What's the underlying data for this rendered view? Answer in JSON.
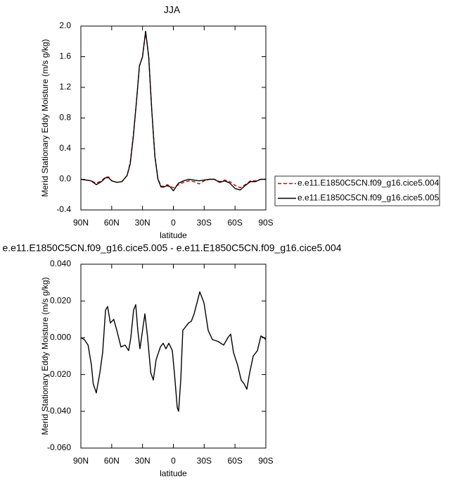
{
  "chart_data": [
    {
      "type": "line",
      "title": "JJA",
      "xlabel": "latitude",
      "ylabel": "Merid Stationary Eddy Moisture (m/s g/kg)",
      "x": [
        90,
        85,
        80,
        75,
        70,
        66,
        63,
        60,
        55,
        50,
        45,
        42,
        39,
        36,
        33,
        30,
        27,
        24,
        21,
        18,
        15,
        12,
        9,
        6,
        3,
        0,
        -5,
        -10,
        -15,
        -20,
        -25,
        -30,
        -35,
        -40,
        -45,
        -50,
        -55,
        -60,
        -65,
        -70,
        -75,
        -80,
        -85,
        -90
      ],
      "series": [
        {
          "name": "e.e11.E1850C5CN.f09_g16.cice5.004",
          "color": "#cc0000",
          "line_style": "dashed",
          "values": [
            0.0,
            -0.01,
            -0.02,
            -0.05,
            -0.02,
            0.03,
            0.03,
            -0.02,
            -0.04,
            -0.03,
            0.05,
            0.22,
            0.57,
            1.0,
            1.48,
            1.6,
            1.93,
            1.6,
            0.9,
            0.31,
            0.01,
            -0.09,
            -0.09,
            -0.07,
            -0.09,
            -0.11,
            -0.07,
            -0.04,
            -0.02,
            -0.03,
            -0.06,
            -0.02,
            0.0,
            0.0,
            -0.03,
            -0.01,
            -0.03,
            -0.08,
            -0.11,
            -0.07,
            -0.02,
            -0.02,
            0.0,
            0.0
          ]
        },
        {
          "name": "e.e11.E1850C5CN.f09_g16.cice5.005",
          "color": "#000000",
          "line_style": "solid",
          "values": [
            0.0,
            -0.01,
            -0.02,
            -0.07,
            -0.03,
            0.02,
            0.02,
            -0.02,
            -0.04,
            -0.03,
            0.05,
            0.2,
            0.55,
            1.0,
            1.48,
            1.6,
            1.93,
            1.6,
            0.9,
            0.3,
            0.0,
            -0.1,
            -0.1,
            -0.08,
            -0.1,
            -0.15,
            -0.05,
            -0.02,
            0.0,
            -0.01,
            -0.02,
            -0.01,
            0.0,
            0.0,
            -0.04,
            -0.02,
            -0.05,
            -0.12,
            -0.14,
            -0.08,
            -0.03,
            -0.03,
            0.0,
            0.0
          ]
        }
      ],
      "xlim": [
        90,
        -90
      ],
      "xticks": [
        {
          "value": 90,
          "label": "90N"
        },
        {
          "value": 60,
          "label": "60N"
        },
        {
          "value": 30,
          "label": "30N"
        },
        0,
        {
          "value": -30,
          "label": "30S"
        },
        {
          "value": -60,
          "label": "60S"
        },
        {
          "value": -90,
          "label": "90S"
        }
      ],
      "ylim": [
        -0.4,
        2.0
      ],
      "yticks": [
        {
          "value": 2.0,
          "label": "2.0"
        },
        {
          "value": 1.6,
          "label": "1.6"
        },
        {
          "value": 1.2,
          "label": "1.2"
        },
        {
          "value": 0.8,
          "label": "0.8"
        },
        {
          "value": 0.4,
          "label": "0.4"
        },
        {
          "value": 0.0,
          "label": "0.0"
        },
        {
          "value": -0.4,
          "label": "-0.4"
        }
      ],
      "legend": "right"
    },
    {
      "type": "line",
      "title": "e.e11.E1850C5CN.f09_g16.cice5.005 - e.e11.E1850C5CN.f09_g16.cice5.004",
      "xlabel": "latitude",
      "ylabel": "Merid Stationary Eddy Moisture (m/s g/kg)",
      "x": [
        90,
        86.6,
        83,
        79.7,
        78,
        75,
        71.5,
        68.8,
        66,
        64,
        61.3,
        58,
        55,
        51,
        47,
        43.5,
        41.4,
        38.7,
        36.6,
        34.6,
        32.5,
        30.5,
        27.7,
        25,
        22,
        19.5,
        16.8,
        12.6,
        9.9,
        7.2,
        4.4,
        1,
        -1,
        -3.8,
        -5.1,
        -7.2,
        -9.2,
        -12,
        -14.7,
        -17.5,
        -20.2,
        -23,
        -25.7,
        -29.8,
        -33.9,
        -38,
        -43.5,
        -49,
        -53,
        -55.8,
        -58.5,
        -62.6,
        -66,
        -68.8,
        -71.5,
        -74.3,
        -77.7,
        -81.8,
        -85.2,
        -88,
        -90
      ],
      "values": [
        0.0,
        -0.001,
        -0.004,
        -0.015,
        -0.025,
        -0.03,
        -0.019,
        -0.008,
        0.015,
        0.017,
        0.008,
        0.01,
        0.004,
        -0.005,
        -0.004,
        -0.007,
        0.0,
        0.015,
        0.018,
        0.004,
        -0.006,
        0.002,
        0.013,
        0.0,
        -0.019,
        -0.023,
        -0.012,
        -0.005,
        -0.003,
        -0.006,
        -0.003,
        -0.007,
        -0.019,
        -0.038,
        -0.04,
        -0.023,
        0.004,
        0.006,
        0.008,
        0.009,
        0.013,
        0.019,
        0.025,
        0.019,
        0.004,
        -0.001,
        -0.002,
        -0.004,
        0.0,
        0.002,
        -0.008,
        -0.015,
        -0.023,
        -0.025,
        -0.028,
        -0.019,
        -0.01,
        -0.007,
        0.001,
        0.0,
        -0.001
      ],
      "color": "#000000",
      "xlim": [
        90,
        -90
      ],
      "xticks": [
        {
          "value": 90,
          "label": "90N"
        },
        {
          "value": 60,
          "label": "60N"
        },
        {
          "value": 30,
          "label": "30N"
        },
        0,
        {
          "value": -30,
          "label": "30S"
        },
        {
          "value": -60,
          "label": "60S"
        },
        {
          "value": -90,
          "label": "90S"
        }
      ],
      "ylim": [
        -0.06,
        0.04
      ],
      "yticks": [
        {
          "value": 0.04,
          "label": "0.040"
        },
        {
          "value": 0.02,
          "label": "0.020"
        },
        {
          "value": 0.0,
          "label": "0.000"
        },
        {
          "value": -0.02,
          "label": "-0.020"
        },
        {
          "value": -0.04,
          "label": "-0.040"
        },
        {
          "value": -0.06,
          "label": "-0.060"
        }
      ]
    }
  ]
}
